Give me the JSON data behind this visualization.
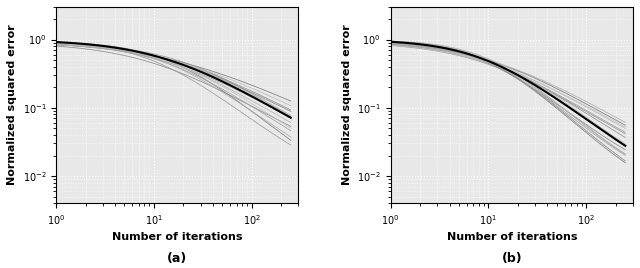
{
  "xlim": [
    1,
    300
  ],
  "ylim": [
    0.004,
    3.0
  ],
  "xlabel": "Number of iterations",
  "ylabel": "Normalized squared error",
  "label_a": "(a)",
  "label_b": "(b)",
  "n_gray_curves": 14,
  "n_points": 300,
  "mean_color": "#000000",
  "gray_colors": [
    "#aaaaaa",
    "#999999",
    "#888888",
    "#777777",
    "#666666",
    "#555555",
    "#444444"
  ],
  "mean_linewidth": 1.5,
  "gray_linewidth": 0.6,
  "background_color": "#e8e8e8",
  "grid_color": "#ffffff",
  "fig_bg": "#ffffff"
}
